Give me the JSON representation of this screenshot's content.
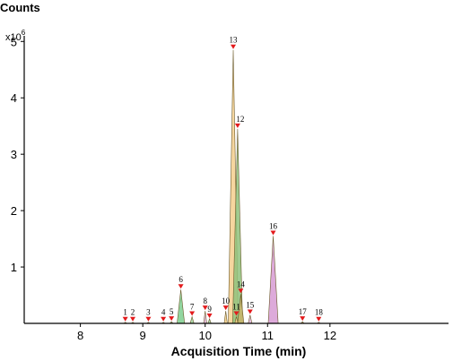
{
  "chart_data": {
    "type": "area",
    "ylabel": "Counts",
    "y_multiplier_base": "x10",
    "y_multiplier_exp": "6",
    "xlabel": "Acquisition Time (min)",
    "xlim": [
      7.1,
      13.9
    ],
    "ylim": [
      0,
      5.1
    ],
    "x_ticks": [
      {
        "value": 8,
        "label": "8"
      },
      {
        "value": 9,
        "label": "9"
      },
      {
        "value": 10,
        "label": "10"
      },
      {
        "value": 11,
        "label": "11"
      },
      {
        "value": 12,
        "label": "12"
      }
    ],
    "y_ticks": [
      {
        "value": 1,
        "label": "1"
      },
      {
        "value": 2,
        "label": "2"
      },
      {
        "value": 3,
        "label": "3"
      },
      {
        "value": 4,
        "label": "4"
      },
      {
        "value": 5,
        "label": "5"
      }
    ],
    "peaks": [
      {
        "label": "1",
        "rt": 8.72,
        "height": 0.02,
        "width": 0.05,
        "fill": "#f5d08a"
      },
      {
        "label": "2",
        "rt": 8.84,
        "height": 0.02,
        "width": 0.05,
        "fill": "#f5d08a"
      },
      {
        "label": "3",
        "rt": 9.09,
        "height": 0.02,
        "width": 0.05,
        "fill": "#f5d08a"
      },
      {
        "label": "4",
        "rt": 9.33,
        "height": 0.02,
        "width": 0.05,
        "fill": "#f5d08a"
      },
      {
        "label": "5",
        "rt": 9.46,
        "height": 0.03,
        "width": 0.05,
        "fill": "#9fd39f"
      },
      {
        "label": "6",
        "rt": 9.61,
        "height": 0.6,
        "width": 0.12,
        "fill": "#7fcf8f"
      },
      {
        "label": "7",
        "rt": 9.79,
        "height": 0.12,
        "width": 0.06,
        "fill": "#9fd39f"
      },
      {
        "label": "8",
        "rt": 10.0,
        "height": 0.22,
        "width": 0.05,
        "fill": "#e0b4d8"
      },
      {
        "label": "9",
        "rt": 10.07,
        "height": 0.08,
        "width": 0.05,
        "fill": "#9fd39f"
      },
      {
        "label": "10",
        "rt": 10.33,
        "height": 0.22,
        "width": 0.05,
        "fill": "#f5d08a"
      },
      {
        "label": "11",
        "rt": 10.5,
        "height": 0.12,
        "width": 0.05,
        "fill": "#f5d08a"
      },
      {
        "label": "12",
        "rt": 10.52,
        "height": 3.45,
        "width": 0.16,
        "fill": "#8fc27c"
      },
      {
        "label": "13",
        "rt": 10.45,
        "height": 4.85,
        "width": 0.16,
        "fill": "#f5cf8e"
      },
      {
        "label": "14",
        "rt": 10.57,
        "height": 0.52,
        "width": 0.1,
        "fill": "#c8b46a"
      },
      {
        "label": "15",
        "rt": 10.72,
        "height": 0.15,
        "width": 0.06,
        "fill": "#e0b4d8"
      },
      {
        "label": "16",
        "rt": 11.09,
        "height": 1.55,
        "width": 0.16,
        "fill": "#d79bd4"
      },
      {
        "label": "17",
        "rt": 11.56,
        "height": 0.03,
        "width": 0.05,
        "fill": "#f5d08a"
      },
      {
        "label": "18",
        "rt": 11.82,
        "height": 0.02,
        "width": 0.05,
        "fill": "#f5d08a"
      }
    ],
    "colors": {
      "marker": "#e31a1c",
      "axis": "#000000",
      "peak_outline": "#6b5a2a"
    }
  }
}
